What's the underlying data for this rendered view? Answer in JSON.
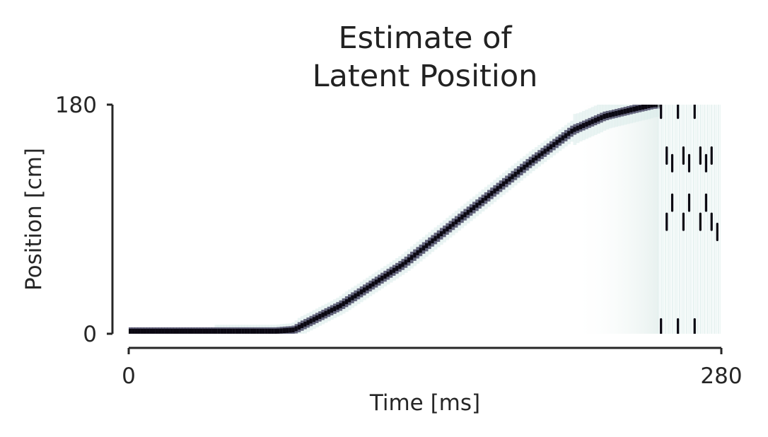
{
  "chart_data": {
    "type": "heatmap",
    "title_lines": [
      "Estimate of",
      "Latent Position"
    ],
    "xlabel": "Time [ms]",
    "ylabel": "Position [cm]",
    "xlim": [
      0,
      280
    ],
    "ylim": [
      0,
      180
    ],
    "x_ticks": [
      0,
      280
    ],
    "y_ticks": [
      0,
      180
    ],
    "x_tick_labels": [
      "0",
      "280"
    ],
    "y_tick_labels": [
      "0",
      "180"
    ],
    "grid": false,
    "colormap": "bone_r",
    "colors": {
      "high": "#0b0812",
      "mid": "#4b4a66",
      "low": "#d9ebe9",
      "none": "#ffffff",
      "axis": "#262626"
    },
    "trajectory": {
      "t": [
        0,
        40,
        70,
        78,
        100,
        130,
        160,
        190,
        210,
        225,
        240,
        248,
        260
      ],
      "position": [
        2,
        2,
        2,
        3,
        22,
        55,
        95,
        135,
        160,
        171,
        177,
        180,
        180
      ]
    },
    "diffuse_interval_ms": [
      210,
      250
    ],
    "pattern_interval_ms": [
      250,
      280
    ],
    "dash_columns_ms": [
      251.5,
      254.2,
      256.8,
      259.5,
      262.1,
      264.8,
      267.4,
      270.1,
      272.8,
      275.4,
      278.1
    ],
    "dash_columns_positions_cm": [
      [
        5,
        176
      ],
      [
        88,
        140
      ],
      [
        103,
        134
      ],
      [
        5,
        176
      ],
      [
        88,
        140
      ],
      [
        103,
        134
      ],
      [
        5,
        176
      ],
      [
        88,
        140
      ],
      [
        103,
        134
      ],
      [
        88,
        140
      ],
      [
        80
      ]
    ]
  }
}
